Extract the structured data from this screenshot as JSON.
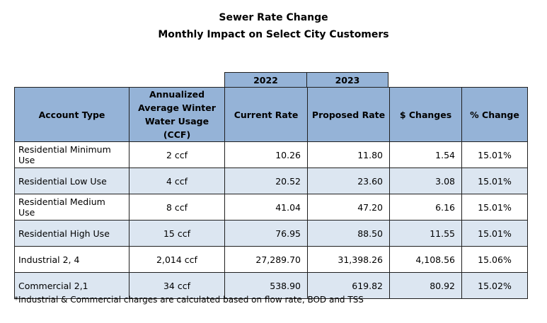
{
  "title_line1": "Sewer Rate Change",
  "title_line2": "Monthly Impact on Select City Customers",
  "years": {
    "current": "2022",
    "proposed": "2023"
  },
  "columns": {
    "account_type": "Account Type",
    "usage_line1": "Annualized",
    "usage_line2": "Average Winter",
    "usage_line3": "Water Usage (CCF)",
    "current_rate": "Current Rate",
    "proposed_rate": "Proposed Rate",
    "dollar_change": "$ Changes",
    "pct_change": "% Change"
  },
  "rows": [
    {
      "type": "Residential Minimum Use",
      "usage": "2 ccf",
      "current": "10.26",
      "proposed": "11.80",
      "change": "1.54",
      "pct": "15.01%"
    },
    {
      "type": "Residential Low Use",
      "usage": "4 ccf",
      "current": "20.52",
      "proposed": "23.60",
      "change": "3.08",
      "pct": "15.01%"
    },
    {
      "type": "Residential Medium Use",
      "usage": "8 ccf",
      "current": "41.04",
      "proposed": "47.20",
      "change": "6.16",
      "pct": "15.01%"
    },
    {
      "type": "Residential High Use",
      "usage": "15 ccf",
      "current": "76.95",
      "proposed": "88.50",
      "change": "11.55",
      "pct": "15.01%"
    },
    {
      "type": "Industrial 2, 4",
      "usage": "2,014 ccf",
      "current": "27,289.70",
      "proposed": "31,398.26",
      "change": "4,108.56",
      "pct": "15.06%"
    },
    {
      "type": "Commercial 2,1",
      "usage": "34 ccf",
      "current": "538.90",
      "proposed": "619.82",
      "change": "80.92",
      "pct": "15.02%"
    }
  ],
  "footnote": "*Industrial & Commercial charges are calculated based on flow rate, BOD and TSS"
}
